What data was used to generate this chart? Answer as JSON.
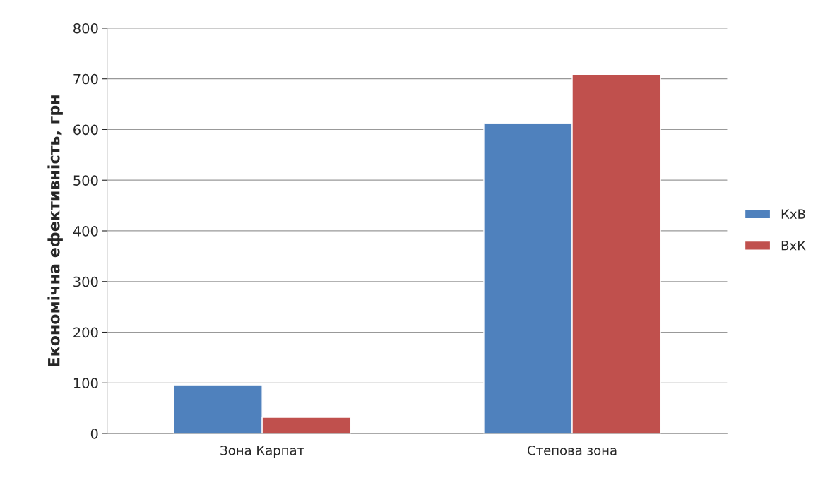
{
  "chart_data": {
    "type": "bar",
    "ylabel": "Економічна ефективність, грн",
    "categories": [
      "Зона Карпат",
      "Степова зона"
    ],
    "series": [
      {
        "name": "КхВ",
        "color": "#4f81bd",
        "values": [
          96,
          612
        ]
      },
      {
        "name": "ВхК",
        "color": "#c0504d",
        "values": [
          32,
          709
        ]
      }
    ],
    "ylim": [
      0,
      800
    ],
    "yticks": [
      0,
      100,
      200,
      300,
      400,
      500,
      600,
      700,
      800
    ],
    "grid": "y",
    "legend": "right"
  }
}
